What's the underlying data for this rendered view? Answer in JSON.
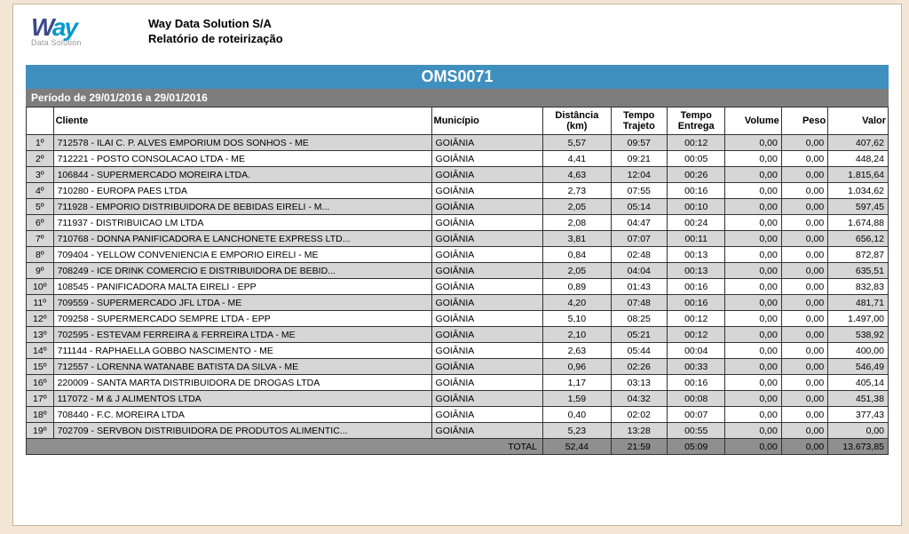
{
  "header": {
    "logo_brand": "Way",
    "logo_sub": "Data Solution",
    "company": "Way Data Solution S/A",
    "report": "Relatório de roteirização"
  },
  "code": "OMS0071",
  "period": "Período de 29/01/2016 a 29/01/2016",
  "columns": {
    "rank": "",
    "cliente": "Cliente",
    "municipio": "Município",
    "dist": "Distância (km)",
    "traj": "Tempo Trajeto",
    "ent": "Tempo Entrega",
    "vol": "Volume",
    "peso": "Peso",
    "valor": "Valor"
  },
  "rows": [
    {
      "rank": "1º",
      "cliente": "712578 - ILAI C. P. ALVES EMPORIUM DOS SONHOS - ME",
      "mun": "GOIÂNIA",
      "dist": "5,57",
      "traj": "09:57",
      "ent": "00:12",
      "vol": "0,00",
      "peso": "0,00",
      "valor": "407,62"
    },
    {
      "rank": "2º",
      "cliente": "712221 - POSTO CONSOLACAO LTDA - ME",
      "mun": "GOIÂNIA",
      "dist": "4,41",
      "traj": "09:21",
      "ent": "00:05",
      "vol": "0,00",
      "peso": "0,00",
      "valor": "448,24"
    },
    {
      "rank": "3º",
      "cliente": "106844 - SUPERMERCADO MOREIRA LTDA.",
      "mun": "GOIÂNIA",
      "dist": "4,63",
      "traj": "12:04",
      "ent": "00:26",
      "vol": "0,00",
      "peso": "0,00",
      "valor": "1.815,64"
    },
    {
      "rank": "4º",
      "cliente": "710280 - EUROPA PAES LTDA",
      "mun": "GOIÂNIA",
      "dist": "2,73",
      "traj": "07:55",
      "ent": "00:16",
      "vol": "0,00",
      "peso": "0,00",
      "valor": "1.034,62"
    },
    {
      "rank": "5º",
      "cliente": "711928 - EMPORIO DISTRIBUIDORA DE BEBIDAS EIRELI - M...",
      "mun": "GOIÂNIA",
      "dist": "2,05",
      "traj": "05:14",
      "ent": "00:10",
      "vol": "0,00",
      "peso": "0,00",
      "valor": "597,45"
    },
    {
      "rank": "6º",
      "cliente": "711937 - DISTRIBUICAO LM LTDA",
      "mun": "GOIÂNIA",
      "dist": "2,08",
      "traj": "04:47",
      "ent": "00:24",
      "vol": "0,00",
      "peso": "0,00",
      "valor": "1.674,88"
    },
    {
      "rank": "7º",
      "cliente": "710768 - DONNA PANIFICADORA E LANCHONETE EXPRESS LTD...",
      "mun": "GOIÂNIA",
      "dist": "3,81",
      "traj": "07:07",
      "ent": "00:11",
      "vol": "0,00",
      "peso": "0,00",
      "valor": "656,12"
    },
    {
      "rank": "8º",
      "cliente": "709404 - YELLOW CONVENIENCIA E EMPORIO EIRELI - ME",
      "mun": "GOIÂNIA",
      "dist": "0,84",
      "traj": "02:48",
      "ent": "00:13",
      "vol": "0,00",
      "peso": "0,00",
      "valor": "872,87"
    },
    {
      "rank": "9º",
      "cliente": "708249 - ICE DRINK COMERCIO E DISTRIBUIDORA DE BEBID...",
      "mun": "GOIÂNIA",
      "dist": "2,05",
      "traj": "04:04",
      "ent": "00:13",
      "vol": "0,00",
      "peso": "0,00",
      "valor": "635,51"
    },
    {
      "rank": "10º",
      "cliente": "108545 - PANIFICADORA MALTA EIRELI - EPP",
      "mun": "GOIÂNIA",
      "dist": "0,89",
      "traj": "01:43",
      "ent": "00:16",
      "vol": "0,00",
      "peso": "0,00",
      "valor": "832,83"
    },
    {
      "rank": "11º",
      "cliente": "709559 - SUPERMERCADO JFL LTDA - ME",
      "mun": "GOIÂNIA",
      "dist": "4,20",
      "traj": "07:48",
      "ent": "00:16",
      "vol": "0,00",
      "peso": "0,00",
      "valor": "481,71"
    },
    {
      "rank": "12º",
      "cliente": "709258 - SUPERMERCADO SEMPRE LTDA - EPP",
      "mun": "GOIÂNIA",
      "dist": "5,10",
      "traj": "08:25",
      "ent": "00:12",
      "vol": "0,00",
      "peso": "0,00",
      "valor": "1.497,00"
    },
    {
      "rank": "13º",
      "cliente": "702595 - ESTEVAM FERREIRA & FERREIRA LTDA - ME",
      "mun": "GOIÂNIA",
      "dist": "2,10",
      "traj": "05:21",
      "ent": "00:12",
      "vol": "0,00",
      "peso": "0,00",
      "valor": "538,92"
    },
    {
      "rank": "14º",
      "cliente": "711144 - RAPHAELLA GOBBO NASCIMENTO - ME",
      "mun": "GOIÂNIA",
      "dist": "2,63",
      "traj": "05:44",
      "ent": "00:04",
      "vol": "0,00",
      "peso": "0,00",
      "valor": "400,00"
    },
    {
      "rank": "15º",
      "cliente": "712557 - LORENNA WATANABE BATISTA DA SILVA - ME",
      "mun": "GOIÂNIA",
      "dist": "0,96",
      "traj": "02:26",
      "ent": "00:33",
      "vol": "0,00",
      "peso": "0,00",
      "valor": "546,49"
    },
    {
      "rank": "16º",
      "cliente": "220009 - SANTA MARTA DISTRIBUIDORA DE DROGAS LTDA",
      "mun": "GOIÂNIA",
      "dist": "1,17",
      "traj": "03:13",
      "ent": "00:16",
      "vol": "0,00",
      "peso": "0,00",
      "valor": "405,14"
    },
    {
      "rank": "17º",
      "cliente": "117072 - M & J ALIMENTOS LTDA",
      "mun": "GOIÂNIA",
      "dist": "1,59",
      "traj": "04:32",
      "ent": "00:08",
      "vol": "0,00",
      "peso": "0,00",
      "valor": "451,38"
    },
    {
      "rank": "18º",
      "cliente": "708440 - F.C. MOREIRA LTDA",
      "mun": "GOIÂNIA",
      "dist": "0,40",
      "traj": "02:02",
      "ent": "00:07",
      "vol": "0,00",
      "peso": "0,00",
      "valor": "377,43"
    },
    {
      "rank": "19º",
      "cliente": "702709 - SERVBON DISTRIBUIDORA DE PRODUTOS ALIMENTIC...",
      "mun": "GOIÂNIA",
      "dist": "5,23",
      "traj": "13:28",
      "ent": "00:55",
      "vol": "0,00",
      "peso": "0,00",
      "valor": "0,00"
    }
  ],
  "total": {
    "label": "TOTAL",
    "dist": "52,44",
    "traj": "21:59",
    "ent": "05:09",
    "vol": "0,00",
    "peso": "0,00",
    "valor": "13.673,85"
  },
  "style": {
    "code_bg": "#3f8fbf",
    "period_bg": "#7d7d7d",
    "zebra_bg": "#d6d6d6",
    "total_bg": "#8f8f8f"
  }
}
